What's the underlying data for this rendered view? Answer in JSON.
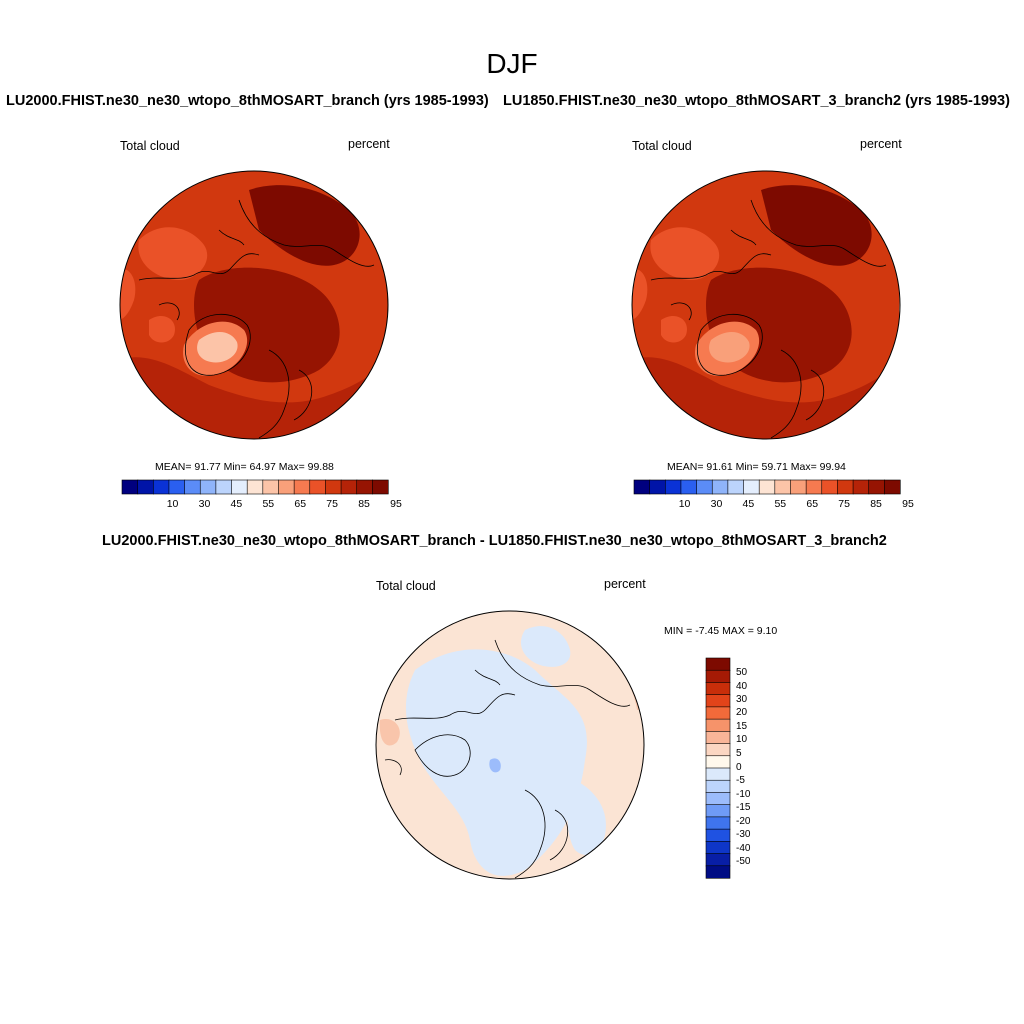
{
  "figure": {
    "title": "DJF"
  },
  "panels": {
    "p1": {
      "title": "LU2000.FHIST.ne30_ne30_wtopo_8thMOSART_branch (yrs 1985-1993)",
      "variable": "Total cloud",
      "units": "percent",
      "stats": "MEAN=  91.77  Min=  64.97  Max=  99.88"
    },
    "p2": {
      "title": "LU1850.FHIST.ne30_ne30_wtopo_8thMOSART_3_branch2 (yrs 1985-1993)",
      "variable": "Total cloud",
      "units": "percent",
      "stats": "MEAN=  91.61  Min=  59.71  Max=  99.94"
    },
    "diff": {
      "title": "LU2000.FHIST.ne30_ne30_wtopo_8thMOSART_branch - LU1850.FHIST.ne30_ne30_wtopo_8thMOSART_3_branch2",
      "variable": "Total cloud",
      "units": "percent",
      "stats": "MIN =  -7.45 MAX =   9.10"
    }
  },
  "colorbar_abs": {
    "colors": [
      "#00007f",
      "#0014a8",
      "#0a32d6",
      "#2a5ff0",
      "#5b8cf7",
      "#8fb4fa",
      "#bcd4fc",
      "#e4eefd",
      "#fde4d4",
      "#fcc4a8",
      "#f9a07a",
      "#f67a50",
      "#ea5228",
      "#d1380f",
      "#b52308",
      "#961402",
      "#7d0a00"
    ],
    "tick_labels": [
      "10",
      "30",
      "45",
      "55",
      "65",
      "75",
      "85",
      "95"
    ]
  },
  "colorbar_diff": {
    "colors": [
      "#7d0a00",
      "#a51a05",
      "#c82e0a",
      "#e2441a",
      "#f26a3a",
      "#f6936a",
      "#f9b598",
      "#fbd6c2",
      "#fff8ec",
      "#dbe9fb",
      "#bcd4fc",
      "#9cbcfb",
      "#6f9bf6",
      "#3f74ee",
      "#1f52e2",
      "#0e36c8",
      "#081ea6",
      "#000c84"
    ],
    "tick_labels": [
      "50",
      "40",
      "30",
      "20",
      "15",
      "10",
      "5",
      "0",
      "-5",
      "-10",
      "-15",
      "-20",
      "-30",
      "-40",
      "-50"
    ]
  }
}
